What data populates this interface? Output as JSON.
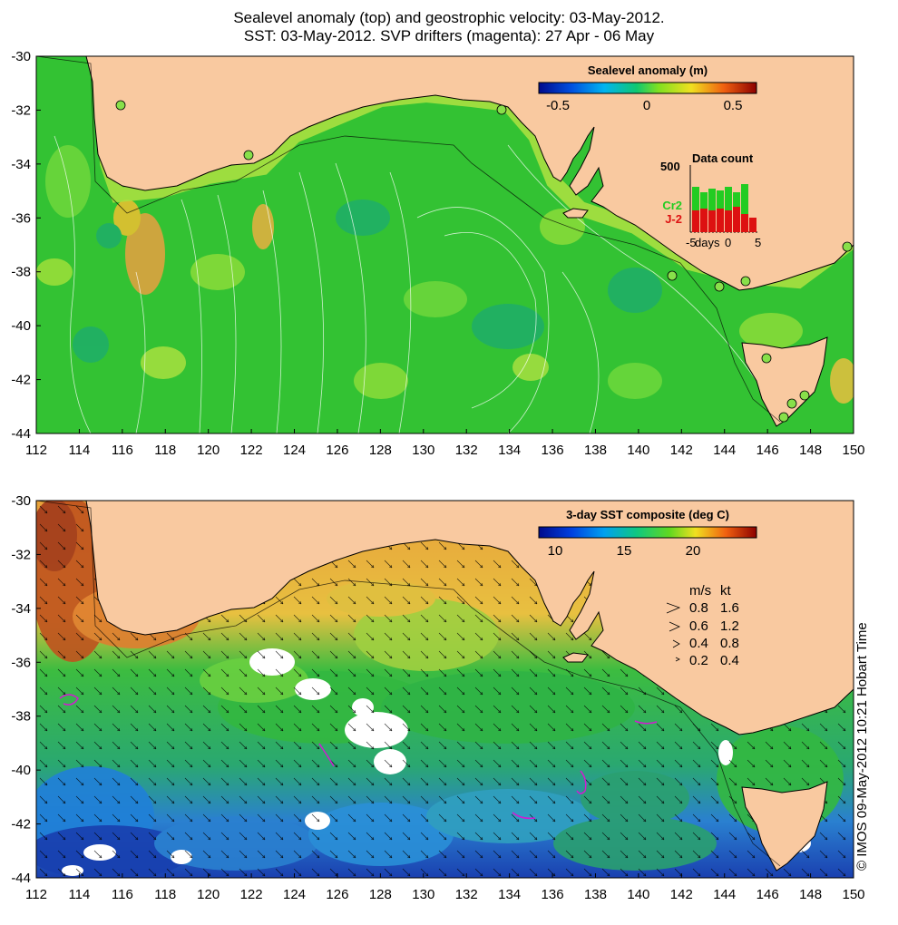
{
  "titles": {
    "line1": "Sealevel anomaly (top) and geostrophic velocity: 03-May-2012.",
    "line2": "SST: 03-May-2012. SVP drifters (magenta): 27 Apr - 06 May"
  },
  "colors": {
    "land": "#f9c9a0",
    "coast": "#000000",
    "sla_base": "#33c233",
    "sst_warm": "#e8a13a",
    "sst_cool": "#2a8fd6",
    "sst_green": "#2db84a",
    "cloud": "#ffffff",
    "drifter": "#d21ad2",
    "cr2": "#22cc22",
    "j2": "#dd1111"
  },
  "axes": {
    "lon_ticks": [
      "112",
      "114",
      "116",
      "118",
      "120",
      "122",
      "124",
      "126",
      "128",
      "130",
      "132",
      "134",
      "136",
      "138",
      "140",
      "142",
      "144",
      "146",
      "148",
      "150"
    ],
    "lat_ticks": [
      "-30",
      "-32",
      "-34",
      "-36",
      "-38",
      "-40",
      "-42",
      "-44"
    ]
  },
  "sla_colorbar": {
    "label": "Sealevel anomaly (m)",
    "ticks": [
      "-0.5",
      "0",
      "0.5"
    ]
  },
  "data_count": {
    "title": "Data count",
    "ymax_label": "500",
    "series": [
      "Cr2",
      "J-2"
    ],
    "x_ticks": [
      "-5",
      "days",
      "0",
      "5"
    ]
  },
  "sst_colorbar": {
    "label": "3-day SST composite (deg C)",
    "ticks": [
      "10",
      "15",
      "20"
    ]
  },
  "velocity_legend": {
    "header_ms": "m/s",
    "header_kt": "kt",
    "rows": [
      {
        "ms": "0.8",
        "kt": "1.6"
      },
      {
        "ms": "0.6",
        "kt": "1.2"
      },
      {
        "ms": "0.4",
        "kt": "0.8"
      },
      {
        "ms": "0.2",
        "kt": "0.4"
      }
    ]
  },
  "credit": "© IMOS 09-May-2012 10:21 Hobart Time"
}
